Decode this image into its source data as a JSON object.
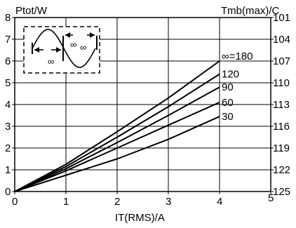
{
  "chart_data": {
    "type": "line",
    "title": "",
    "xlabel": "IT(RMS)/A",
    "ylabel": "Ptot/W",
    "y2label": "Tmb(max)/C",
    "xlim": [
      0,
      5
    ],
    "ylim": [
      0,
      8
    ],
    "x_ticks": [
      "0",
      "1",
      "2",
      "3",
      "4",
      "5"
    ],
    "y_ticks": [
      "0",
      "1",
      "2",
      "3",
      "4",
      "5",
      "6",
      "7",
      "8"
    ],
    "y2_ticks": [
      "125",
      "122",
      "119",
      "116",
      "113",
      "110",
      "107",
      "104",
      "101"
    ],
    "grid": true,
    "series": [
      {
        "name": "∞=180",
        "x": [
          0,
          1,
          2,
          3,
          4
        ],
        "y": [
          0,
          1.25,
          2.75,
          4.3,
          6.0
        ]
      },
      {
        "name": "120",
        "x": [
          0,
          1,
          2,
          3,
          4
        ],
        "y": [
          0,
          1.15,
          2.5,
          3.9,
          5.4
        ]
      },
      {
        "name": "90",
        "x": [
          0,
          1,
          2,
          3,
          4
        ],
        "y": [
          0,
          1.05,
          2.25,
          3.5,
          4.8
        ]
      },
      {
        "name": "60",
        "x": [
          0,
          1,
          2,
          3,
          4
        ],
        "y": [
          0,
          0.95,
          2.0,
          3.05,
          4.1
        ]
      },
      {
        "name": "30",
        "x": [
          0,
          1,
          2,
          3,
          4
        ],
        "y": [
          0,
          0.75,
          1.5,
          2.4,
          3.45
        ]
      }
    ],
    "inset": {
      "labels": [
        "∞",
        "∞",
        "∞"
      ]
    }
  }
}
